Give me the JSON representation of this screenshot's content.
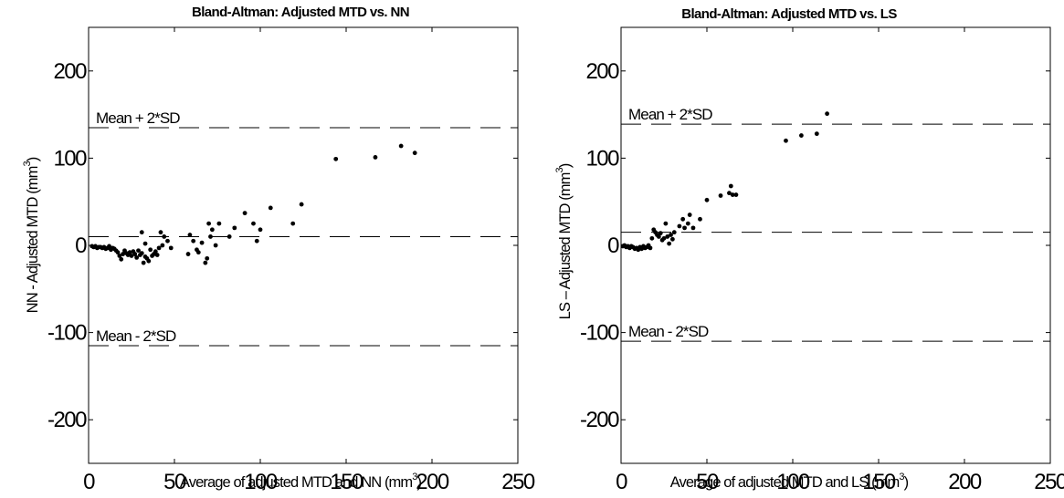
{
  "chart_data": [
    {
      "type": "scatter",
      "title": "Bland-Altman: Adjusted MTD vs. NN",
      "xlabel": "Average of adjusted MTD and NN (mm",
      "xlabel_sup": "3",
      "xlabel_end": ")",
      "ylabel": "NN - Adjusted MTD (mm",
      "ylabel_sup": "3",
      "ylabel_end": ")",
      "xlim": [
        0,
        250
      ],
      "ylim": [
        -250,
        250
      ],
      "xticks": [
        0,
        50,
        100,
        150,
        200,
        250
      ],
      "xtick_labels": [
        "0",
        "50",
        "100",
        "150",
        "200",
        "250"
      ],
      "yticks": [
        200,
        100,
        0,
        -100,
        -200
      ],
      "ytick_labels": [
        "200",
        "100",
        "0",
        "-100",
        "-200"
      ],
      "grid": false,
      "reference_lines": [
        {
          "label": "Mean + 2*SD",
          "y": 135
        },
        {
          "label": "",
          "y": 10
        },
        {
          "label": "Mean - 2*SD",
          "y": -115
        }
      ],
      "points": [
        [
          2,
          -1
        ],
        [
          3,
          -2
        ],
        [
          4,
          -1
        ],
        [
          5,
          -3
        ],
        [
          6,
          -2
        ],
        [
          7,
          -2
        ],
        [
          8,
          -3
        ],
        [
          9,
          -2
        ],
        [
          10,
          -4
        ],
        [
          11,
          -3
        ],
        [
          12,
          -1
        ],
        [
          13,
          -5
        ],
        [
          14,
          -3
        ],
        [
          15,
          -4
        ],
        [
          16,
          -6
        ],
        [
          17,
          -8
        ],
        [
          18,
          -12
        ],
        [
          19,
          -16
        ],
        [
          20,
          -10
        ],
        [
          21,
          -6
        ],
        [
          22,
          -9
        ],
        [
          23,
          -11
        ],
        [
          24,
          -8
        ],
        [
          25,
          -12
        ],
        [
          26,
          -7
        ],
        [
          27,
          -10
        ],
        [
          28,
          -14
        ],
        [
          29,
          -6
        ],
        [
          30,
          -11
        ],
        [
          31,
          -9
        ],
        [
          32,
          -20
        ],
        [
          33,
          -13
        ],
        [
          34,
          -15
        ],
        [
          35,
          -18
        ],
        [
          36,
          -5
        ],
        [
          37,
          -12
        ],
        [
          38,
          -10
        ],
        [
          39,
          -7
        ],
        [
          40,
          -11
        ],
        [
          41,
          -3
        ],
        [
          42,
          15
        ],
        [
          43,
          0
        ],
        [
          44,
          10
        ],
        [
          31,
          15
        ],
        [
          33,
          2
        ],
        [
          46,
          5
        ],
        [
          48,
          -3
        ],
        [
          58,
          -10
        ],
        [
          59,
          12
        ],
        [
          61,
          5
        ],
        [
          63,
          -5
        ],
        [
          64,
          -8
        ],
        [
          66,
          3
        ],
        [
          68,
          -20
        ],
        [
          69,
          -15
        ],
        [
          70,
          25
        ],
        [
          71,
          10
        ],
        [
          72,
          18
        ],
        [
          74,
          0
        ],
        [
          76,
          25
        ],
        [
          82,
          10
        ],
        [
          85,
          20
        ],
        [
          91,
          37
        ],
        [
          96,
          25
        ],
        [
          98,
          5
        ],
        [
          100,
          18
        ],
        [
          106,
          43
        ],
        [
          119,
          25
        ],
        [
          124,
          47
        ],
        [
          144,
          99
        ],
        [
          167,
          101
        ],
        [
          182,
          114
        ],
        [
          190,
          106
        ]
      ]
    },
    {
      "type": "scatter",
      "title": "Bland-Altman: Adjusted MTD vs. LS",
      "xlabel": "Average of adjusted MTD and LS (mm",
      "xlabel_sup": "3",
      "xlabel_end": ")",
      "ylabel": "LS – Adjusted MTD (mm",
      "ylabel_sup": "3",
      "ylabel_end": ")",
      "xlim": [
        0,
        250
      ],
      "ylim": [
        -250,
        250
      ],
      "xticks": [
        0,
        50,
        100,
        150,
        200,
        250
      ],
      "xtick_labels": [
        "0",
        "50",
        "100",
        "150",
        "200",
        "250"
      ],
      "yticks": [
        200,
        100,
        0,
        -100,
        -200
      ],
      "ytick_labels": [
        "200",
        "100",
        "0",
        "-100",
        "-200"
      ],
      "grid": false,
      "reference_lines": [
        {
          "label": "Mean + 2*SD",
          "y": 139
        },
        {
          "label": "",
          "y": 15
        },
        {
          "label": "Mean - 2*SD",
          "y": -110
        }
      ],
      "points": [
        [
          1,
          -1
        ],
        [
          2,
          0
        ],
        [
          3,
          -2
        ],
        [
          4,
          -1
        ],
        [
          5,
          -3
        ],
        [
          6,
          -1
        ],
        [
          7,
          -2
        ],
        [
          8,
          -4
        ],
        [
          9,
          -3
        ],
        [
          10,
          -5
        ],
        [
          11,
          -2
        ],
        [
          12,
          -4
        ],
        [
          13,
          -1
        ],
        [
          14,
          -3
        ],
        [
          15,
          -2
        ],
        [
          16,
          0
        ],
        [
          17,
          -3
        ],
        [
          18,
          8
        ],
        [
          19,
          18
        ],
        [
          20,
          15
        ],
        [
          21,
          12
        ],
        [
          22,
          10
        ],
        [
          23,
          14
        ],
        [
          24,
          6
        ],
        [
          25,
          8
        ],
        [
          26,
          25
        ],
        [
          27,
          10
        ],
        [
          28,
          2
        ],
        [
          29,
          12
        ],
        [
          30,
          7
        ],
        [
          31,
          15
        ],
        [
          34,
          22
        ],
        [
          36,
          30
        ],
        [
          37,
          20
        ],
        [
          39,
          25
        ],
        [
          40,
          35
        ],
        [
          42,
          20
        ],
        [
          46,
          30
        ],
        [
          50,
          52
        ],
        [
          58,
          57
        ],
        [
          63,
          60
        ],
        [
          64,
          68
        ],
        [
          65,
          58
        ],
        [
          67,
          58
        ],
        [
          96,
          120
        ],
        [
          105,
          126
        ],
        [
          114,
          128
        ],
        [
          120,
          151
        ]
      ]
    }
  ]
}
